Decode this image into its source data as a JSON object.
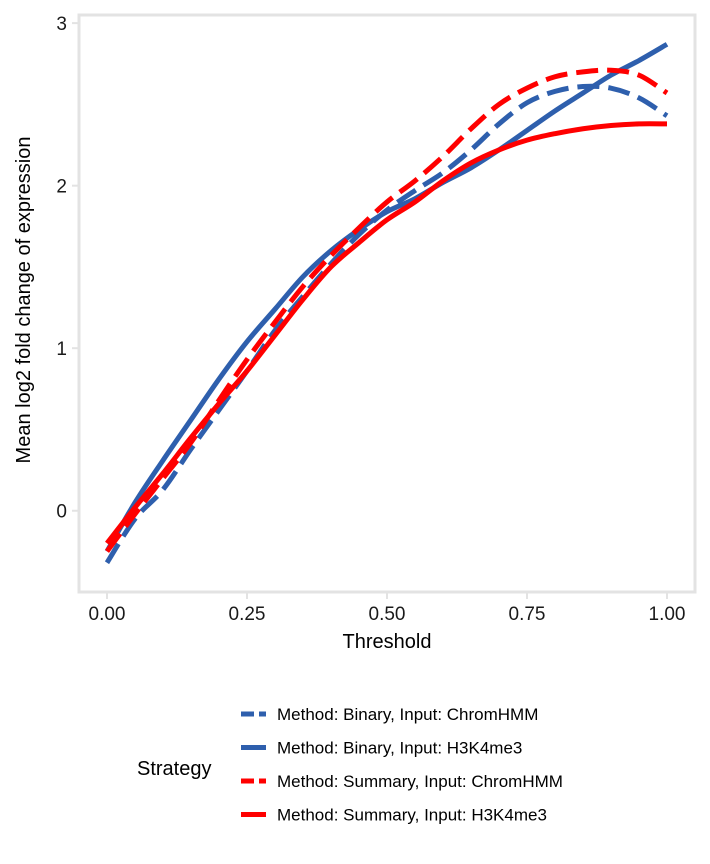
{
  "chart_data": {
    "type": "line",
    "xlabel": "Threshold",
    "ylabel": "Mean log2 fold change of expression",
    "xlim": [
      -0.05,
      1.05
    ],
    "ylim": [
      -0.5,
      3.05
    ],
    "x_ticks": [
      0.0,
      0.25,
      0.5,
      0.75,
      1.0
    ],
    "x_tick_labels": [
      "0.00",
      "0.25",
      "0.50",
      "0.75",
      "1.00"
    ],
    "y_ticks": [
      0,
      1,
      2,
      3
    ],
    "y_tick_labels": [
      "0",
      "1",
      "2",
      "3"
    ],
    "grid": false,
    "legend": {
      "title": "Strategy",
      "placement": "bottom"
    },
    "series": [
      {
        "name": "Method: Binary, Input: ChromHMM",
        "color": "#2E5FAD",
        "dash": "dashed",
        "x": [
          0.0,
          0.05,
          0.1,
          0.15,
          0.2,
          0.25,
          0.3,
          0.35,
          0.4,
          0.45,
          0.5,
          0.55,
          0.6,
          0.65,
          0.7,
          0.75,
          0.8,
          0.85,
          0.9,
          0.95,
          1.0
        ],
        "y": [
          -0.32,
          -0.05,
          0.13,
          0.38,
          0.62,
          0.86,
          1.11,
          1.32,
          1.52,
          1.7,
          1.85,
          1.97,
          2.08,
          2.22,
          2.38,
          2.51,
          2.58,
          2.61,
          2.6,
          2.54,
          2.43
        ]
      },
      {
        "name": "Method: Binary, Input: H3K4me3",
        "color": "#2E5FAD",
        "dash": "solid",
        "x": [
          0.0,
          0.05,
          0.1,
          0.15,
          0.2,
          0.25,
          0.3,
          0.35,
          0.4,
          0.45,
          0.5,
          0.55,
          0.6,
          0.65,
          0.7,
          0.75,
          0.8,
          0.85,
          0.9,
          0.95,
          1.0
        ],
        "y": [
          -0.25,
          0.05,
          0.31,
          0.56,
          0.81,
          1.04,
          1.24,
          1.44,
          1.6,
          1.73,
          1.84,
          1.92,
          2.02,
          2.11,
          2.22,
          2.34,
          2.46,
          2.57,
          2.68,
          2.77,
          2.87
        ]
      },
      {
        "name": "Method: Summary, Input: ChromHMM",
        "color": "#FF0000",
        "dash": "dashed",
        "x": [
          0.0,
          0.05,
          0.1,
          0.15,
          0.2,
          0.25,
          0.3,
          0.35,
          0.4,
          0.45,
          0.5,
          0.55,
          0.6,
          0.65,
          0.7,
          0.75,
          0.8,
          0.85,
          0.9,
          0.95,
          1.0
        ],
        "y": [
          -0.25,
          -0.02,
          0.2,
          0.42,
          0.68,
          0.93,
          1.16,
          1.38,
          1.57,
          1.74,
          1.9,
          2.03,
          2.18,
          2.35,
          2.5,
          2.6,
          2.67,
          2.7,
          2.71,
          2.68,
          2.57
        ]
      },
      {
        "name": "Method: Summary, Input: H3K4me3",
        "color": "#FF0000",
        "dash": "solid",
        "x": [
          0.0,
          0.05,
          0.1,
          0.15,
          0.2,
          0.25,
          0.3,
          0.35,
          0.4,
          0.45,
          0.5,
          0.55,
          0.6,
          0.65,
          0.7,
          0.75,
          0.8,
          0.85,
          0.9,
          0.95,
          1.0
        ],
        "y": [
          -0.2,
          0.02,
          0.23,
          0.45,
          0.66,
          0.86,
          1.08,
          1.3,
          1.5,
          1.65,
          1.79,
          1.9,
          2.03,
          2.14,
          2.22,
          2.28,
          2.32,
          2.35,
          2.37,
          2.38,
          2.38
        ]
      }
    ]
  }
}
